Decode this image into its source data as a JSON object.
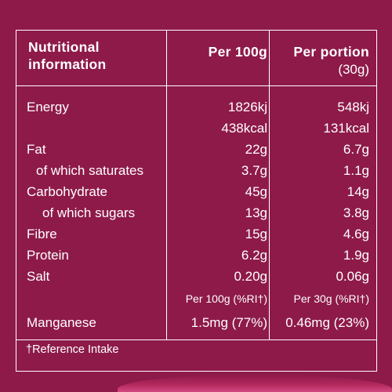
{
  "header": {
    "col0_line1": "Nutritional",
    "col0_line2": "information",
    "col1": "Per 100g",
    "col2_line1": "Per portion",
    "col2_line2": "(30g)"
  },
  "rows": [
    {
      "label": "Energy",
      "per100": "1826kj",
      "portion": "548kj"
    },
    {
      "label": "",
      "per100": "438kcal",
      "portion": "131kcal"
    },
    {
      "label": "Fat",
      "per100": "22g",
      "portion": "6.7g"
    },
    {
      "label": "of which saturates",
      "per100": "3.7g",
      "portion": "1.1g"
    },
    {
      "label": "Carbohydrate",
      "per100": "45g",
      "portion": "14g"
    },
    {
      "label": "of which sugars",
      "per100": "13g",
      "portion": "3.8g"
    },
    {
      "label": "Fibre",
      "per100": "15g",
      "portion": "4.6g"
    },
    {
      "label": "Protein",
      "per100": "6.2g",
      "portion": "1.9g"
    },
    {
      "label": "Salt",
      "per100": "0.20g",
      "portion": "0.06g"
    }
  ],
  "ri_header": {
    "per100": "Per 100g (%RI†)",
    "portion": "Per 30g (%RI†)"
  },
  "manganese": {
    "label": "Manganese",
    "per100": "1.5mg (77%)",
    "portion": "0.46mg (23%)"
  },
  "footnote": "†Reference Intake",
  "colors": {
    "background": "#8e1a4a",
    "text": "#ffffff",
    "accent": "#e0508a"
  }
}
